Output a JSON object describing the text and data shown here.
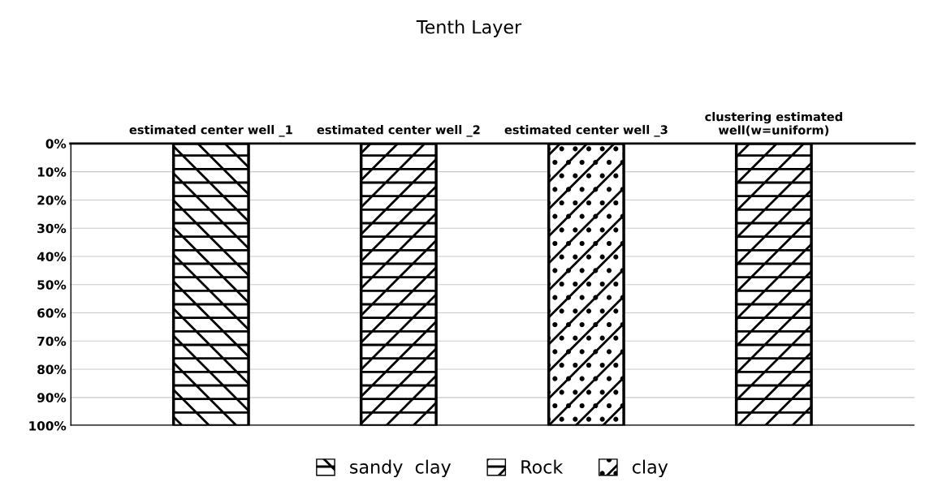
{
  "chart_data": {
    "type": "bar",
    "title": "Tenth Layer",
    "categories": [
      "estimated center well _1",
      "estimated center well _2",
      "estimated center well _3",
      "clustering estimated\nwell(w=uniform)"
    ],
    "series": [
      {
        "name": "sandy  clay",
        "color": "#000000",
        "values": [
          100,
          0,
          0,
          0
        ]
      },
      {
        "name": "Rock",
        "color": "#000000",
        "values": [
          0,
          100,
          0,
          100
        ]
      },
      {
        "name": "clay",
        "color": "#000000",
        "values": [
          0,
          0,
          100,
          0
        ]
      }
    ],
    "ylim": [
      100,
      0
    ],
    "yticks": [
      {
        "value": 0,
        "label": "0%"
      },
      {
        "value": 10,
        "label": "10%"
      },
      {
        "value": 20,
        "label": "20%"
      },
      {
        "value": 30,
        "label": "30%"
      },
      {
        "value": 40,
        "label": "40%"
      },
      {
        "value": 50,
        "label": "50%"
      },
      {
        "value": 60,
        "label": "60%"
      },
      {
        "value": 70,
        "label": "70%"
      },
      {
        "value": 80,
        "label": "80%"
      },
      {
        "value": 90,
        "label": "90%"
      },
      {
        "value": 100,
        "label": "100%"
      }
    ],
    "grid": "y",
    "legend": "bottom"
  }
}
